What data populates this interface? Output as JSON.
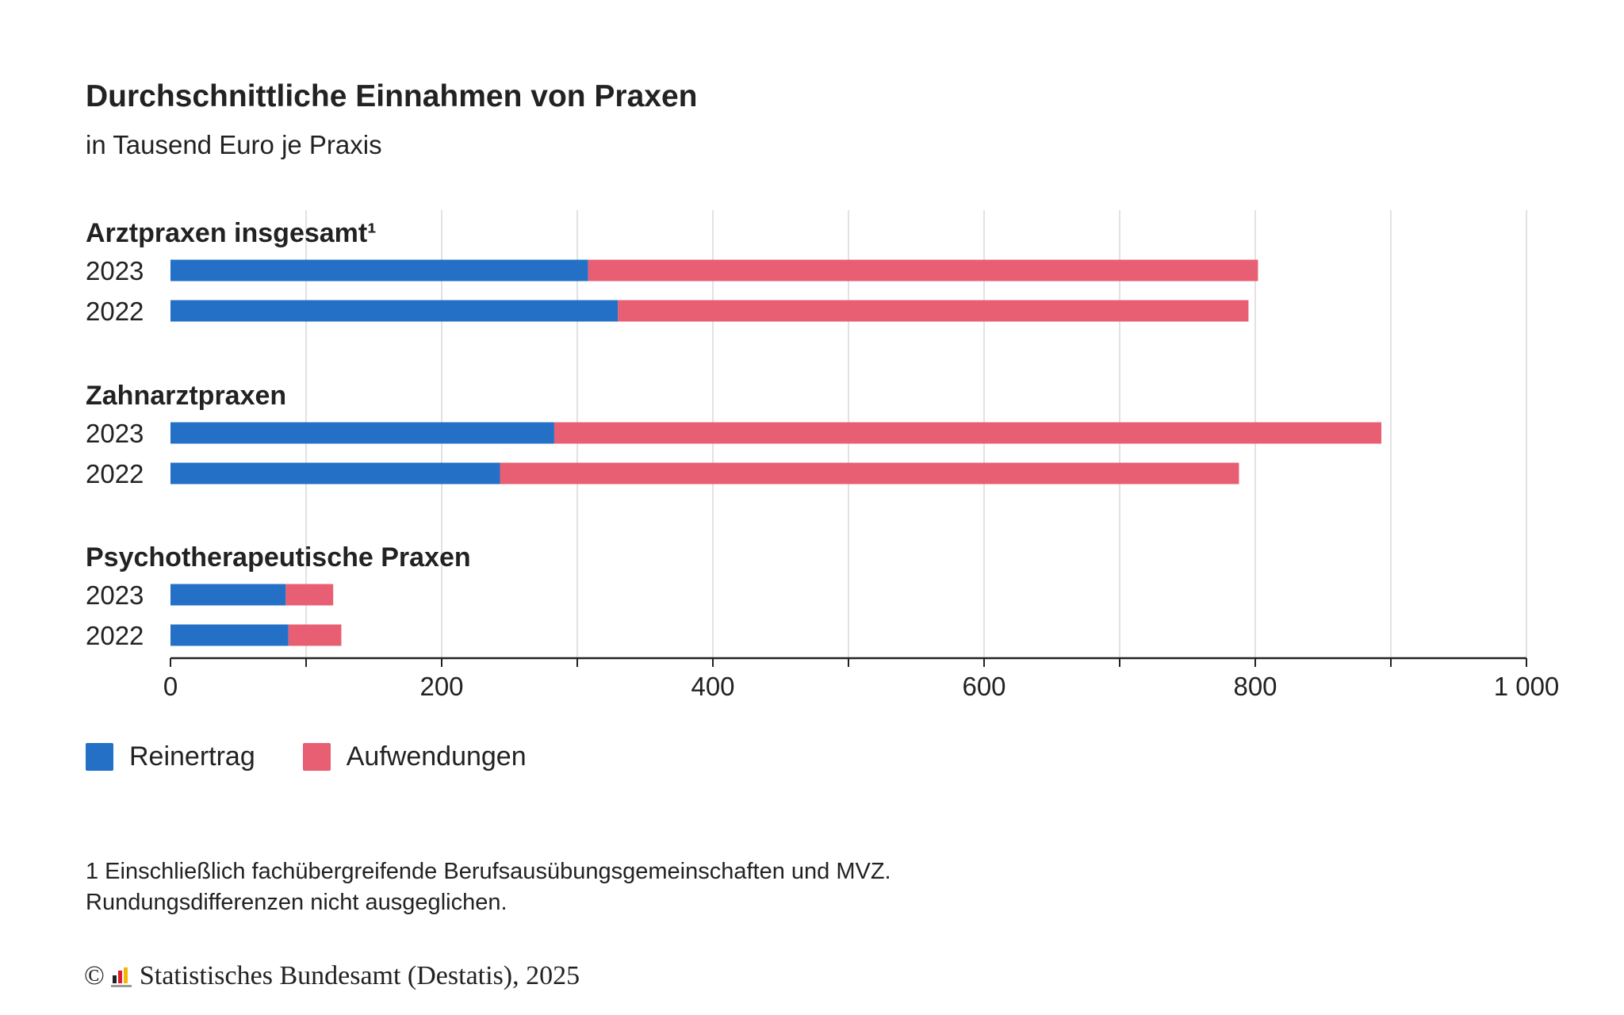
{
  "title": "Durchschnittliche Einnahmen von Praxen",
  "subtitle": "in Tausend Euro je Praxis",
  "chart_data": {
    "type": "bar",
    "orientation": "horizontal",
    "stacked": true,
    "groups": [
      {
        "label": "Arztpraxen insgesamt¹",
        "rows": [
          {
            "category": "2023",
            "values": [
              308,
              494
            ]
          },
          {
            "category": "2022",
            "values": [
              330,
              465
            ]
          }
        ]
      },
      {
        "label": "Zahnarztpraxen",
        "rows": [
          {
            "category": "2023",
            "values": [
              283,
              610
            ]
          },
          {
            "category": "2022",
            "values": [
              243,
              545
            ]
          }
        ]
      },
      {
        "label": "Psychotherapeutische Praxen",
        "rows": [
          {
            "category": "2023",
            "values": [
              85,
              35
            ]
          },
          {
            "category": "2022",
            "values": [
              87,
              39
            ]
          }
        ]
      }
    ],
    "series": [
      {
        "name": "Reinertrag",
        "color": "#2470c6"
      },
      {
        "name": "Aufwendungen",
        "color": "#e85f74"
      }
    ],
    "xlim": [
      0,
      1000
    ],
    "xticks": [
      0,
      100,
      200,
      300,
      400,
      500,
      600,
      700,
      800,
      900,
      1000
    ],
    "xtick_labels": [
      "0",
      "200",
      "400",
      "600",
      "800",
      "1 000"
    ],
    "xtick_label_values": [
      0,
      200,
      400,
      600,
      800,
      1000
    ],
    "grid": true,
    "legend_position": "bottom-left"
  },
  "footnotes": [
    "1 Einschließlich fachübergreifende Berufsausübungsgemeinschaften und MVZ.",
    "Rundungsdifferenzen nicht ausgeglichen."
  ],
  "copyright": {
    "symbol": "©",
    "text": "Statistisches Bundesamt (Destatis), 2025",
    "logo_icon": "destatis-logo-icon"
  }
}
